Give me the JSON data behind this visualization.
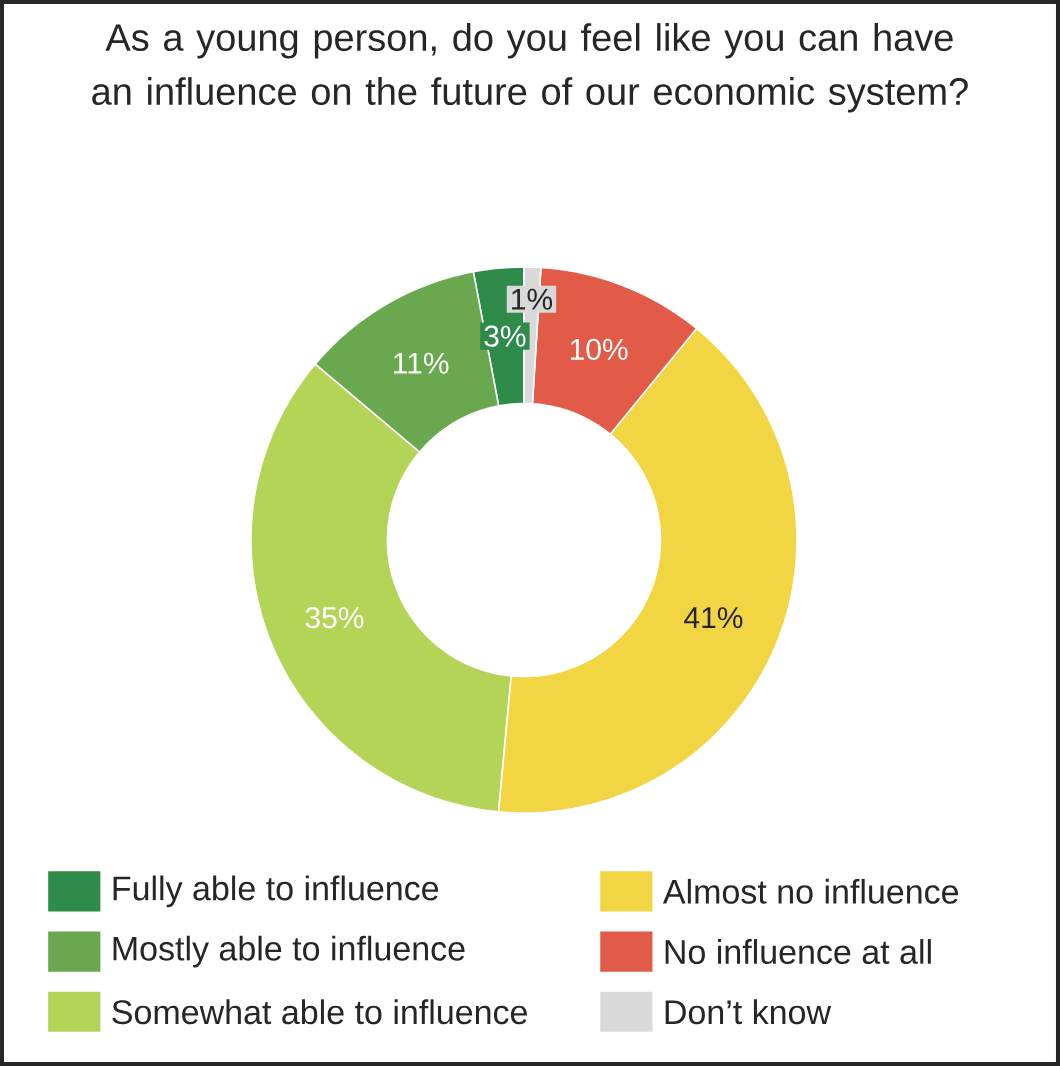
{
  "chart_data": {
    "type": "donut",
    "title": "As a young person, do you feel like you can have an influence on the future of our economic system?",
    "categories": [
      "Fully able to influence",
      "Mostly able to influence",
      "Somewhat able to influence",
      "Almost no influence",
      "No influence at all",
      "Don’t know"
    ],
    "values": [
      3,
      11,
      35,
      41,
      10,
      1
    ],
    "value_labels": [
      "3%",
      "11%",
      "35%",
      "41%",
      "10%",
      "1%"
    ],
    "colors": [
      "#2e8b4a",
      "#69a84f",
      "#b3d456",
      "#f2d543",
      "#e25a48",
      "#d9d9d9"
    ],
    "legend": "bottom"
  }
}
